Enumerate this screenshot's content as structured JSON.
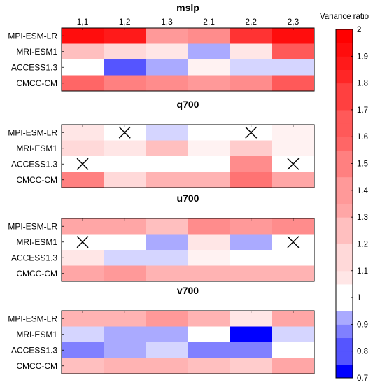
{
  "chart_data": {
    "type": "heatmap",
    "colorbar": {
      "title": "Variance ratio",
      "min": 0.7,
      "max": 2.0,
      "ticks": [
        "0.7",
        "0.8",
        "0.9",
        "1",
        "1.1",
        "1.2",
        "1.3",
        "1.4",
        "1.5",
        "1.6",
        "1.7",
        "1.8",
        "1.9",
        "2"
      ],
      "colors": {
        "min": "#0000ff",
        "mid": "#ffffff",
        "max": "#ff0000"
      }
    },
    "columns": [
      "1,1",
      "1,2",
      "1,3",
      "2,1",
      "2,2",
      "2,3"
    ],
    "rows": [
      "MPI-ESM-LR",
      "MRI-ESM1",
      "ACCESS1.3",
      "CMCC-CM"
    ],
    "panels": [
      {
        "title": "mslp",
        "values": [
          [
            1.95,
            1.9,
            1.4,
            1.45,
            1.8,
            1.95
          ],
          [
            1.25,
            1.15,
            1.08,
            0.92,
            1.12,
            1.65
          ],
          [
            1.0,
            0.8,
            0.88,
            1.06,
            0.94,
            0.94
          ],
          [
            1.6,
            1.5,
            1.45,
            1.4,
            1.45,
            1.65
          ]
        ],
        "cross": [
          [
            false,
            false,
            false,
            false,
            false,
            false
          ],
          [
            false,
            false,
            false,
            false,
            false,
            false
          ],
          [
            false,
            false,
            false,
            false,
            false,
            false
          ],
          [
            false,
            false,
            false,
            false,
            false,
            false
          ]
        ]
      },
      {
        "title": "q700",
        "values": [
          [
            1.1,
            1.0,
            0.93,
            1.0,
            1.0,
            1.06
          ],
          [
            1.15,
            1.1,
            1.25,
            1.06,
            1.2,
            1.06
          ],
          [
            1.0,
            1.0,
            1.0,
            1.0,
            1.45,
            1.0
          ],
          [
            1.5,
            1.15,
            1.3,
            1.3,
            1.55,
            1.35
          ]
        ],
        "cross": [
          [
            false,
            true,
            false,
            false,
            true,
            false
          ],
          [
            false,
            false,
            false,
            false,
            false,
            false
          ],
          [
            true,
            false,
            false,
            false,
            false,
            true
          ],
          [
            false,
            false,
            false,
            false,
            false,
            false
          ]
        ]
      },
      {
        "title": "u700",
        "values": [
          [
            1.35,
            1.35,
            1.25,
            1.45,
            1.4,
            1.45
          ],
          [
            1.0,
            1.0,
            0.88,
            1.08,
            0.88,
            1.0
          ],
          [
            1.12,
            0.94,
            0.94,
            1.06,
            1.0,
            1.0
          ],
          [
            1.35,
            1.4,
            1.3,
            1.3,
            1.3,
            1.3
          ]
        ],
        "cross": [
          [
            false,
            false,
            false,
            false,
            false,
            false
          ],
          [
            true,
            false,
            false,
            false,
            false,
            true
          ],
          [
            false,
            false,
            false,
            false,
            false,
            false
          ],
          [
            false,
            false,
            false,
            false,
            false,
            false
          ]
        ]
      },
      {
        "title": "v700",
        "values": [
          [
            1.3,
            1.3,
            1.4,
            1.3,
            1.12,
            1.35
          ],
          [
            0.93,
            0.88,
            0.88,
            1.0,
            0.72,
            0.93
          ],
          [
            0.83,
            0.88,
            0.95,
            0.86,
            0.86,
            1.0
          ],
          [
            1.25,
            1.3,
            1.3,
            1.25,
            1.2,
            1.35
          ]
        ],
        "cross": [
          [
            false,
            false,
            false,
            false,
            false,
            false
          ],
          [
            false,
            false,
            false,
            false,
            false,
            false
          ],
          [
            false,
            false,
            false,
            false,
            false,
            false
          ],
          [
            false,
            false,
            false,
            false,
            false,
            false
          ]
        ]
      }
    ]
  }
}
